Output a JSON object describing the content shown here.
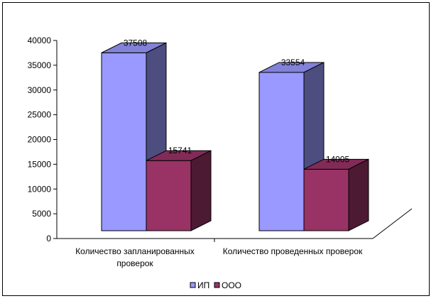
{
  "chart_data": {
    "type": "bar",
    "title": "",
    "xlabel": "",
    "ylabel": "",
    "categories": [
      [
        "Количество запланированных",
        "проверок"
      ],
      [
        "Количество проведенных проверок"
      ]
    ],
    "series": [
      {
        "name": "ИП",
        "values": [
          37508,
          33554
        ],
        "color": "#9999ff"
      },
      {
        "name": "ООО",
        "values": [
          15741,
          14005
        ],
        "color": "#993366"
      }
    ],
    "ylim": [
      0,
      40000
    ],
    "yticks": [
      0,
      5000,
      10000,
      15000,
      20000,
      25000,
      30000,
      35000,
      40000
    ],
    "grid": false,
    "bar_style": "3d",
    "legend_position": "bottom",
    "data_labels": true
  }
}
